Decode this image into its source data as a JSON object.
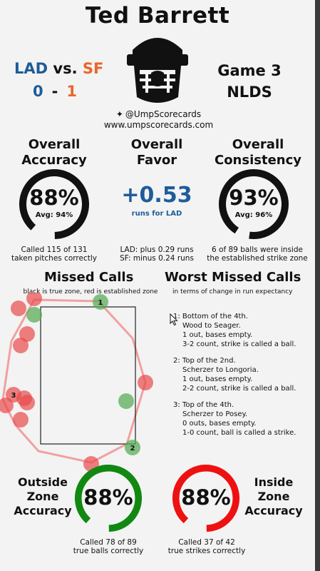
{
  "umpire": "Ted Barrett",
  "teams": {
    "away": "LAD",
    "vs": "vs.",
    "home": "SF"
  },
  "score": {
    "away": "0",
    "dash": "-",
    "home": "1"
  },
  "game": {
    "label": "Game 3",
    "series": "NLDS"
  },
  "social": {
    "handle": "@UmpScorecards",
    "site": "www.umpscorecards.com"
  },
  "overall_accuracy": {
    "title_line1": "Overall",
    "title_line2": "Accuracy",
    "pct": "88%",
    "avg": "Avg: 94%",
    "value": 0.88,
    "note_line1": "Called 115 of 131",
    "note_line2": "taken pitches correctly"
  },
  "overall_favor": {
    "title_line1": "Overall",
    "title_line2": "Favor",
    "value": "+0.53",
    "sub": "runs for LAD",
    "note_line1": "LAD: plus 0.29 runs",
    "note_line2": "SF: minus 0.24 runs"
  },
  "overall_consistency": {
    "title_line1": "Overall",
    "title_line2": "Consistency",
    "pct": "93%",
    "avg": "Avg: 96%",
    "value": 0.93,
    "note_line1": "6 of 89 balls were inside",
    "note_line2": "the established strike zone"
  },
  "missed_calls": {
    "title": "Missed Calls",
    "subtitle": "black is true zone, red is established zone",
    "labels": [
      "1",
      "2",
      "3"
    ]
  },
  "worst_missed": {
    "title": "Worst Missed Calls",
    "subtitle": "in terms of change in run expectancy",
    "items": [
      {
        "num": "1:",
        "l1": "Bottom of the 4th.",
        "l2": "Wood to Seager.",
        "l3": "1 out, bases empty.",
        "l4": "3-2 count, strike is called a ball."
      },
      {
        "num": "2:",
        "l1": "Top of the 2nd.",
        "l2": "Scherzer to Longoria.",
        "l3": "1 out, bases empty.",
        "l4": "2-2 count, strike is called a ball."
      },
      {
        "num": "3:",
        "l1": "Top of the 4th.",
        "l2": "Scherzer to Posey.",
        "l3": "0 outs, bases empty.",
        "l4": "1-0 count, ball is called a strike."
      }
    ]
  },
  "outside_zone": {
    "line1": "Outside",
    "line2": "Zone",
    "line3": "Accuracy",
    "pct": "88%",
    "value": 0.88,
    "color": "#118811",
    "note_line1": "Called 78 of 89",
    "note_line2": "true balls correctly"
  },
  "inside_zone": {
    "line1": "Inside",
    "line2": "Zone",
    "line3": "Accuracy",
    "pct": "88%",
    "value": 0.88,
    "color": "#ee1111",
    "note_line1": "Called 37 of 42",
    "note_line2": "true strikes correctly"
  },
  "colors": {
    "accent_blue": "#1e5c99",
    "accent_orange": "#e8672a",
    "ring_black": "#111111",
    "missed_red": "#e84a4a",
    "missed_green": "#5aae5a"
  }
}
